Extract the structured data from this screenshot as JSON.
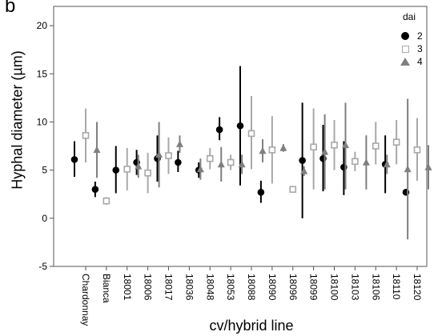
{
  "panel_label": "b",
  "colors": {
    "dai_2": "#000000",
    "dai_3": "#a8a8a8",
    "dai_4": "#7f7f7f",
    "axis": "#555555",
    "gridline": "#ffffff"
  },
  "chart_data": {
    "type": "scatter",
    "subtype": "mean-with-error-bars",
    "xlabel": "cv/hybrid line",
    "ylabel": "Hyphal diameter (µm)",
    "ylim": [
      -5,
      22
    ],
    "yticks": [
      -5,
      0,
      5,
      10,
      15,
      20
    ],
    "grid": false,
    "legend_title": "dai",
    "legend_position": "top-right",
    "categories": [
      "Chardonnay",
      "Bianca",
      "18001",
      "18006",
      "18017",
      "18036",
      "18048",
      "18053",
      "18088",
      "18090",
      "18096",
      "18099",
      "18100",
      "18103",
      "18106",
      "18110",
      "18120"
    ],
    "series": [
      {
        "name": "2",
        "marker": "circle",
        "color": "#000000",
        "means": [
          6.1,
          3.0,
          5.0,
          5.8,
          6.2,
          5.8,
          5.0,
          9.2,
          9.6,
          2.7,
          null,
          6.0,
          6.2,
          5.3,
          null,
          5.6,
          2.7
        ],
        "lower": [
          4.3,
          2.2,
          2.6,
          4.5,
          3.8,
          4.8,
          4.2,
          8.1,
          3.4,
          1.6,
          null,
          0.0,
          2.8,
          2.4,
          null,
          2.6,
          2.7
        ],
        "upper": [
          8.0,
          3.8,
          7.5,
          7.1,
          8.6,
          7.0,
          5.8,
          10.5,
          15.8,
          3.9,
          null,
          12.0,
          9.7,
          8.0,
          null,
          8.6,
          2.7
        ]
      },
      {
        "name": "3",
        "marker": "square",
        "color": "#a8a8a8",
        "means": [
          8.6,
          1.8,
          5.1,
          4.7,
          6.5,
          null,
          6.2,
          5.8,
          8.8,
          7.1,
          3.0,
          7.4,
          7.6,
          5.9,
          7.5,
          7.9,
          7.1
        ],
        "lower": [
          5.8,
          1.4,
          2.9,
          2.6,
          4.6,
          null,
          5.1,
          5.0,
          5.1,
          3.6,
          3.0,
          3.0,
          5.0,
          4.9,
          5.6,
          5.6,
          3.9
        ],
        "upper": [
          11.4,
          2.2,
          7.3,
          6.8,
          8.4,
          null,
          7.3,
          6.6,
          12.7,
          10.6,
          3.0,
          11.4,
          10.2,
          6.9,
          10.0,
          10.2,
          10.4
        ]
      },
      {
        "name": "4",
        "marker": "triangle",
        "color": "#7f7f7f",
        "means": [
          7.1,
          null,
          5.4,
          6.6,
          7.7,
          5.1,
          5.6,
          5.6,
          7.0,
          7.3,
          4.9,
          6.9,
          7.6,
          5.8,
          5.6,
          5.1,
          5.3
        ],
        "lower": [
          4.2,
          null,
          4.2,
          3.2,
          6.8,
          4.0,
          3.8,
          4.6,
          5.8,
          6.9,
          4.4,
          3.0,
          3.0,
          3.0,
          4.6,
          -2.2,
          3.0
        ],
        "upper": [
          10.0,
          null,
          6.6,
          10.0,
          8.6,
          6.2,
          7.4,
          6.6,
          8.2,
          7.7,
          5.4,
          10.8,
          12.0,
          8.6,
          6.6,
          12.4,
          7.6
        ]
      }
    ]
  }
}
